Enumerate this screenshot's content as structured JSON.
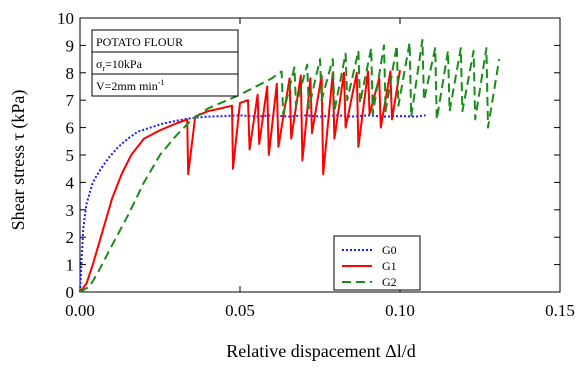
{
  "chart_data": {
    "type": "line",
    "title": "",
    "xlabel": "Relative dispacement Δl/d",
    "ylabel": "Shear stress τ (kPa)",
    "xlim": [
      0,
      0.15
    ],
    "ylim": [
      0,
      10
    ],
    "x_ticks": [
      "0.00",
      "0.05",
      "0.10",
      "0.15"
    ],
    "x_tick_values": [
      0,
      0.05,
      0.1,
      0.15
    ],
    "y_ticks": [
      "0",
      "1",
      "2",
      "3",
      "4",
      "5",
      "6",
      "7",
      "8",
      "9",
      "10"
    ],
    "y_tick_values": [
      0,
      1,
      2,
      3,
      4,
      5,
      6,
      7,
      8,
      9,
      10
    ],
    "grid": false,
    "legend_position": "bottom-right",
    "annotation": {
      "line1": "POTATO FLOUR",
      "line2_symbol": "σ",
      "line2_sub": "r",
      "line2_value": "=10kPa",
      "line3_value": "V=2mm  min",
      "line3_sup": "-1"
    },
    "series": [
      {
        "name": "G0",
        "color": "#1a1aff",
        "dash": "dotted",
        "x": [
          0.0,
          0.001,
          0.002,
          0.004,
          0.006,
          0.009,
          0.012,
          0.015,
          0.018,
          0.022,
          0.026,
          0.03,
          0.035,
          0.04,
          0.045,
          0.05,
          0.055,
          0.06,
          0.065,
          0.07,
          0.075,
          0.08,
          0.085,
          0.09,
          0.095,
          0.1,
          0.105,
          0.108
        ],
        "y": [
          0.0,
          2.3,
          3.2,
          4.0,
          4.4,
          4.9,
          5.3,
          5.6,
          5.85,
          6.0,
          6.15,
          6.25,
          6.35,
          6.4,
          6.42,
          6.45,
          6.4,
          6.45,
          6.4,
          6.45,
          6.4,
          6.45,
          6.4,
          6.45,
          6.4,
          6.42,
          6.4,
          6.45
        ]
      },
      {
        "name": "G1",
        "color": "#ff0000",
        "dash": "solid",
        "x": [
          0.0,
          0.002,
          0.004,
          0.006,
          0.008,
          0.01,
          0.013,
          0.016,
          0.02,
          0.025,
          0.03,
          0.0335,
          0.0338,
          0.036,
          0.04,
          0.044,
          0.0475,
          0.0478,
          0.05,
          0.0525,
          0.053,
          0.0555,
          0.056,
          0.0585,
          0.059,
          0.0615,
          0.062,
          0.0655,
          0.066,
          0.069,
          0.0695,
          0.072,
          0.0725,
          0.0755,
          0.076,
          0.079,
          0.0795,
          0.0825,
          0.083,
          0.0865,
          0.087,
          0.09,
          0.0905,
          0.0935,
          0.094,
          0.097,
          0.0975,
          0.1
        ],
        "y": [
          0.0,
          0.3,
          1.0,
          1.8,
          2.6,
          3.4,
          4.3,
          5.0,
          5.6,
          5.9,
          6.15,
          6.3,
          4.3,
          6.4,
          6.6,
          6.7,
          6.8,
          4.5,
          6.9,
          7.0,
          5.2,
          7.2,
          5.4,
          7.5,
          5.0,
          7.6,
          5.3,
          7.8,
          5.6,
          7.9,
          4.8,
          7.8,
          5.8,
          7.9,
          4.3,
          8.0,
          5.6,
          8.0,
          6.0,
          8.0,
          5.3,
          8.05,
          6.5,
          7.8,
          6.0,
          8.05,
          6.3,
          8.1
        ]
      },
      {
        "name": "G2",
        "color": "#1a8c1a",
        "dash": "dashed",
        "x": [
          0.0,
          0.003,
          0.006,
          0.01,
          0.015,
          0.02,
          0.025,
          0.03,
          0.035,
          0.04,
          0.045,
          0.05,
          0.055,
          0.06,
          0.063,
          0.0635,
          0.067,
          0.0675,
          0.071,
          0.0715,
          0.075,
          0.0755,
          0.079,
          0.0795,
          0.083,
          0.0835,
          0.087,
          0.0875,
          0.091,
          0.0915,
          0.095,
          0.0955,
          0.099,
          0.0995,
          0.103,
          0.1035,
          0.107,
          0.1075,
          0.111,
          0.1115,
          0.115,
          0.1155,
          0.119,
          0.1195,
          0.123,
          0.1235,
          0.127,
          0.1275,
          0.131
        ],
        "y": [
          0.0,
          0.2,
          0.8,
          1.7,
          2.8,
          4.0,
          5.0,
          5.7,
          6.3,
          6.7,
          6.95,
          7.2,
          7.5,
          7.8,
          8.05,
          6.5,
          8.2,
          6.8,
          8.3,
          6.7,
          8.5,
          7.0,
          8.5,
          6.6,
          8.7,
          7.0,
          8.8,
          6.9,
          8.9,
          6.5,
          9.0,
          6.6,
          9.0,
          6.8,
          9.1,
          6.4,
          9.2,
          7.0,
          8.9,
          6.3,
          8.8,
          6.6,
          8.9,
          6.6,
          8.8,
          6.3,
          8.9,
          6.0,
          8.5
        ]
      }
    ]
  }
}
